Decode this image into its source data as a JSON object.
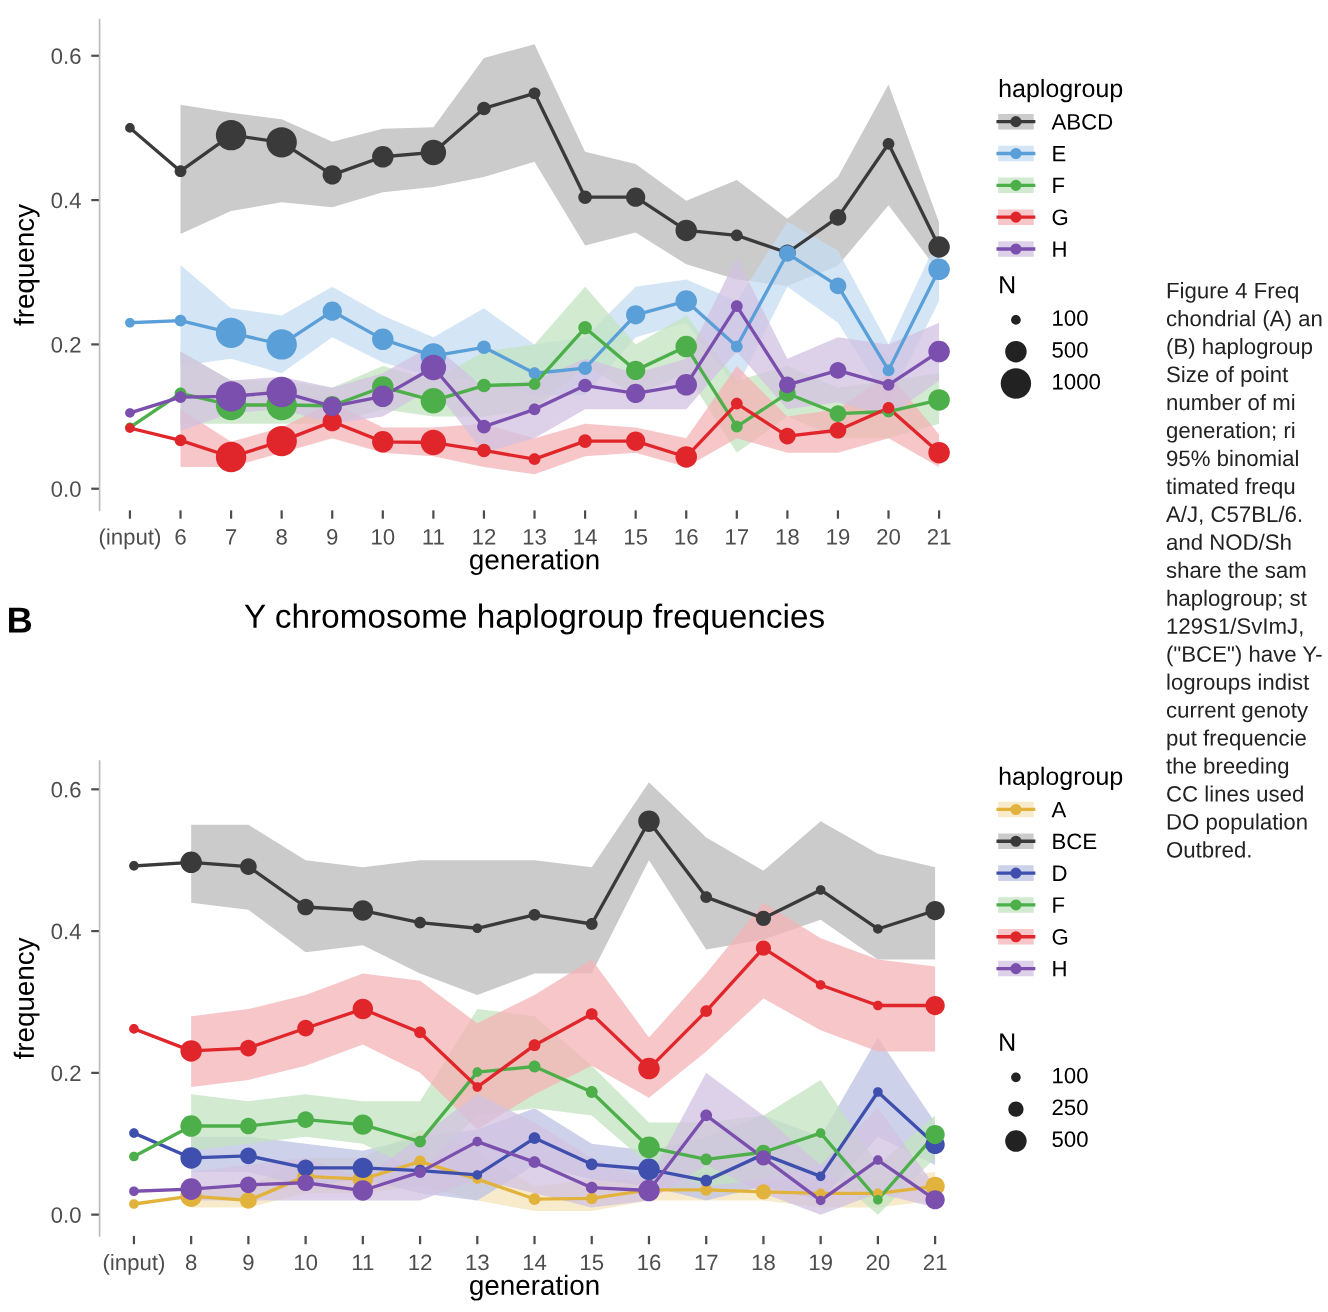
{
  "chart_data": [
    {
      "type": "bubble",
      "ylabel": "frequency",
      "xlabel": "generation",
      "legend": "right",
      "legend_title": "haplogroup",
      "marker": "circle",
      "line_style": "solid",
      "grid": false,
      "categories": [
        "(input)",
        "6",
        "7",
        "8",
        "9",
        "10",
        "11",
        "12",
        "13",
        "14",
        "15",
        "16",
        "17",
        "18",
        "19",
        "20",
        "21"
      ],
      "ylim": [
        -0.03,
        0.65
      ],
      "yticks": [
        {
          "value": 0,
          "label": "0.0"
        },
        0.2,
        0.4,
        0.6
      ],
      "size_legend": [
        100,
        500,
        1000
      ],
      "series": [
        {
          "type": "line",
          "marker": "none",
          "color": "#3a3a3a",
          "values": [
            0.5,
            0.44,
            0.49,
            0.48,
            0.435,
            0.46,
            0.466,
            0.527,
            0.548,
            0.404,
            0.404,
            0.358,
            0.351,
            0.327,
            0.376,
            0.478,
            0.335
          ]
        },
        {
          "type": "line",
          "marker": "none",
          "color": "#5a9fd8",
          "values": [
            0.23,
            0.233,
            0.216,
            0.2,
            0.246,
            0.207,
            0.184,
            0.196,
            0.16,
            0.167,
            0.241,
            0.26,
            0.197,
            0.326,
            0.281,
            0.164,
            0.304
          ]
        },
        {
          "type": "line",
          "marker": "none",
          "color": "#4daf4a",
          "values": [
            0.085,
            0.132,
            0.116,
            0.116,
            0.115,
            0.141,
            0.122,
            0.143,
            0.145,
            0.223,
            0.164,
            0.197,
            0.086,
            0.132,
            0.104,
            0.107,
            0.123
          ]
        },
        {
          "type": "line",
          "marker": "none",
          "color": "#e0262b",
          "values": [
            0.084,
            0.067,
            0.044,
            0.066,
            0.093,
            0.065,
            0.064,
            0.053,
            0.041,
            0.066,
            0.066,
            0.044,
            0.118,
            0.073,
            0.081,
            0.112,
            0.05
          ]
        },
        {
          "type": "line",
          "marker": "none",
          "color": "#7b4fad",
          "values": [
            0.105,
            0.127,
            0.128,
            0.134,
            0.114,
            0.128,
            0.168,
            0.086,
            0.11,
            0.143,
            0.132,
            0.144,
            0.253,
            0.144,
            0.164,
            0.144,
            0.19
          ]
        },
        {
          "name": "ABCD",
          "color": "#3a3a3a",
          "values": [
            0.5,
            0.44,
            0.49,
            0.48,
            0.435,
            0.46,
            0.466,
            0.527,
            0.548,
            0.404,
            0.404,
            0.358,
            0.351,
            0.327,
            0.376,
            0.478,
            0.335
          ],
          "lower": [
            null,
            0.353,
            0.385,
            0.397,
            0.39,
            0.411,
            0.418,
            0.432,
            0.453,
            0.337,
            0.355,
            0.311,
            0.29,
            0.281,
            0.309,
            0.393,
            0.3
          ],
          "upper": [
            null,
            0.532,
            0.521,
            0.512,
            0.481,
            0.499,
            0.501,
            0.597,
            0.616,
            0.467,
            0.45,
            0.399,
            0.428,
            0.374,
            0.432,
            0.56,
            0.369
          ],
          "sizes": [
            100,
            150,
            1000,
            1000,
            400,
            500,
            700,
            200,
            150,
            200,
            400,
            500,
            150,
            300,
            300,
            150,
            500
          ]
        },
        {
          "name": "E",
          "color": "#5a9fd8",
          "values": [
            0.23,
            0.233,
            0.216,
            0.2,
            0.246,
            0.207,
            0.184,
            0.196,
            0.16,
            0.167,
            0.241,
            0.26,
            0.197,
            0.326,
            0.281,
            0.164,
            0.304
          ],
          "lower": [
            null,
            0.17,
            0.18,
            0.16,
            0.21,
            0.175,
            0.155,
            0.15,
            0.13,
            0.13,
            0.21,
            0.23,
            0.14,
            0.28,
            0.23,
            0.12,
            0.26
          ],
          "upper": [
            null,
            0.31,
            0.25,
            0.24,
            0.28,
            0.24,
            0.21,
            0.25,
            0.2,
            0.21,
            0.28,
            0.29,
            0.26,
            0.37,
            0.33,
            0.2,
            0.35
          ],
          "sizes": [
            100,
            150,
            1000,
            1000,
            400,
            500,
            700,
            200,
            150,
            200,
            400,
            500,
            150,
            300,
            300,
            150,
            500
          ]
        },
        {
          "name": "F",
          "color": "#4daf4a",
          "values": [
            0.085,
            0.132,
            0.116,
            0.116,
            0.115,
            0.141,
            0.122,
            0.143,
            0.145,
            0.223,
            0.164,
            0.197,
            0.086,
            0.132,
            0.104,
            0.107,
            0.123
          ],
          "lower": [
            null,
            0.09,
            0.09,
            0.09,
            0.09,
            0.11,
            0.1,
            0.1,
            0.11,
            0.17,
            0.13,
            0.16,
            0.05,
            0.1,
            0.07,
            0.07,
            0.09
          ],
          "upper": [
            null,
            0.19,
            0.15,
            0.15,
            0.14,
            0.17,
            0.15,
            0.19,
            0.2,
            0.28,
            0.2,
            0.24,
            0.15,
            0.17,
            0.14,
            0.15,
            0.16
          ],
          "sizes": [
            100,
            150,
            1000,
            1000,
            400,
            500,
            700,
            200,
            150,
            200,
            400,
            500,
            150,
            300,
            300,
            150,
            500
          ]
        },
        {
          "name": "G",
          "color": "#e0262b",
          "values": [
            0.084,
            0.067,
            0.044,
            0.066,
            0.093,
            0.065,
            0.064,
            0.053,
            0.041,
            0.066,
            0.066,
            0.044,
            0.118,
            0.073,
            0.081,
            0.112,
            0.05
          ],
          "lower": [
            null,
            0.03,
            0.03,
            0.05,
            0.07,
            0.05,
            0.045,
            0.03,
            0.02,
            0.045,
            0.05,
            0.03,
            0.07,
            0.05,
            0.05,
            0.07,
            0.03
          ],
          "upper": [
            null,
            0.11,
            0.065,
            0.085,
            0.12,
            0.085,
            0.085,
            0.09,
            0.07,
            0.09,
            0.085,
            0.07,
            0.17,
            0.1,
            0.11,
            0.16,
            0.075
          ],
          "sizes": [
            100,
            150,
            1000,
            1000,
            400,
            500,
            700,
            200,
            150,
            200,
            400,
            500,
            150,
            300,
            300,
            150,
            500
          ]
        },
        {
          "name": "H",
          "color": "#7b4fad",
          "values": [
            0.105,
            0.127,
            0.128,
            0.134,
            0.114,
            0.128,
            0.168,
            0.086,
            0.11,
            0.143,
            0.132,
            0.144,
            0.253,
            0.144,
            0.164,
            0.144,
            0.19
          ],
          "lower": [
            null,
            0.08,
            0.105,
            0.11,
            0.09,
            0.1,
            0.14,
            0.05,
            0.07,
            0.11,
            0.11,
            0.11,
            0.19,
            0.11,
            0.12,
            0.1,
            0.15
          ],
          "upper": [
            null,
            0.19,
            0.15,
            0.155,
            0.14,
            0.16,
            0.2,
            0.14,
            0.15,
            0.18,
            0.16,
            0.18,
            0.32,
            0.18,
            0.21,
            0.2,
            0.23
          ],
          "sizes": [
            100,
            150,
            1000,
            1000,
            400,
            500,
            700,
            200,
            150,
            200,
            400,
            500,
            150,
            300,
            300,
            150,
            500
          ]
        }
      ],
      "annotations": [
        "N",
        "Figure 4 Freq\nchondrial (A) an\n(B) haplogroup\nSize of point\nnumber of mi\ngeneration; ri\n95% binomial\ntimated frequ\nA/J, C57BL/6.\nand NOD/Sh\nshare the sam\nhaplogroup; st\n129S1/SvImJ,\n(\"BCE\") have Y-\nlogroups indist\ncurrent genoty\nput frequencie\nthe breeding\nCC lines used\nDO population\nOutbred."
      ]
    },
    {
      "type": "bubble",
      "title": "Y chromosome haplogroup frequencies",
      "ylabel": "frequency",
      "xlabel": "generation",
      "legend": "right",
      "legend_title": "haplogroup",
      "marker": "circle",
      "line_style": "solid",
      "grid": false,
      "categories": [
        "(input)",
        "8",
        "9",
        "10",
        "11",
        "12",
        "13",
        "14",
        "15",
        "16",
        "17",
        "18",
        "19",
        "20",
        "21"
      ],
      "ylim": [
        -0.03,
        0.64
      ],
      "yticks": [
        {
          "value": 0,
          "label": "0.0"
        },
        0.2,
        0.4,
        0.6
      ],
      "size_legend": [
        100,
        250,
        500
      ],
      "series": [
        {
          "type": "line",
          "marker": "none",
          "color": "#e2b33c",
          "values": [
            0.015,
            0.026,
            0.02,
            0.054,
            0.05,
            0.075,
            0.05,
            0.022,
            0.023,
            0.035,
            0.035,
            0.032,
            0.03,
            0.03,
            0.04
          ]
        },
        {
          "type": "line",
          "marker": "none",
          "color": "#3a3a3a",
          "values": [
            0.492,
            0.497,
            0.491,
            0.434,
            0.429,
            0.412,
            0.404,
            0.423,
            0.41,
            0.555,
            0.448,
            0.418,
            0.458,
            0.403,
            0.429
          ]
        },
        {
          "type": "line",
          "marker": "none",
          "color": "#3f4fae",
          "values": [
            0.115,
            0.08,
            0.083,
            0.066,
            0.066,
            0.062,
            0.056,
            0.108,
            0.071,
            0.064,
            0.048,
            0.085,
            0.054,
            0.173,
            0.099
          ]
        },
        {
          "type": "line",
          "marker": "none",
          "color": "#4daf4a",
          "values": [
            0.082,
            0.125,
            0.125,
            0.134,
            0.127,
            0.103,
            0.201,
            0.209,
            0.173,
            0.095,
            0.078,
            0.088,
            0.115,
            0.021,
            0.113
          ]
        },
        {
          "type": "line",
          "marker": "none",
          "color": "#e0262b",
          "values": [
            0.262,
            0.231,
            0.235,
            0.263,
            0.29,
            0.257,
            0.18,
            0.239,
            0.283,
            0.206,
            0.287,
            0.376,
            0.324,
            0.295,
            0.295
          ]
        },
        {
          "type": "line",
          "marker": "none",
          "color": "#7b4fad",
          "values": [
            0.033,
            0.036,
            0.042,
            0.045,
            0.034,
            0.06,
            0.103,
            0.074,
            0.038,
            0.034,
            0.14,
            0.08,
            0.02,
            0.077,
            0.021
          ]
        },
        {
          "name": "A",
          "color": "#e2b33c",
          "values": [
            0.015,
            0.026,
            0.02,
            0.054,
            0.05,
            0.075,
            0.05,
            0.022,
            0.023,
            null,
            0.035,
            0.032,
            0.03,
            0.03,
            0.04
          ],
          "lower": [
            null,
            0.01,
            0.01,
            0.03,
            0.03,
            0.04,
            0.02,
            0.005,
            0.005,
            0.02,
            0.02,
            0.02,
            0.01,
            0.01,
            0.02
          ],
          "upper": [
            null,
            0.04,
            0.04,
            0.08,
            0.08,
            0.12,
            0.09,
            0.04,
            0.05,
            0.05,
            0.06,
            0.05,
            0.05,
            0.05,
            0.06
          ],
          "sizes": [
            100,
            500,
            300,
            300,
            450,
            150,
            100,
            150,
            150,
            null,
            150,
            250,
            100,
            100,
            400
          ]
        },
        {
          "name": "BCE",
          "color": "#3a3a3a",
          "values": [
            0.492,
            0.497,
            0.491,
            0.434,
            0.429,
            0.412,
            0.404,
            0.423,
            0.41,
            0.555,
            0.448,
            0.418,
            0.458,
            0.403,
            0.429
          ],
          "lower": [
            null,
            0.44,
            0.43,
            0.37,
            0.38,
            0.34,
            0.31,
            0.34,
            0.34,
            0.5,
            0.374,
            0.388,
            0.416,
            0.36,
            0.36
          ],
          "upper": [
            null,
            0.55,
            0.55,
            0.5,
            0.49,
            0.5,
            0.5,
            0.5,
            0.49,
            0.61,
            0.532,
            0.485,
            0.555,
            0.509,
            0.49
          ],
          "sizes": [
            100,
            500,
            300,
            300,
            450,
            150,
            100,
            150,
            150,
            500,
            150,
            250,
            100,
            100,
            400
          ]
        },
        {
          "name": "D",
          "color": "#3f4fae",
          "values": [
            0.115,
            0.08,
            0.083,
            0.066,
            0.066,
            0.062,
            0.056,
            0.108,
            0.071,
            0.064,
            0.048,
            null,
            0.054,
            0.173,
            0.099
          ],
          "lower": [
            null,
            0.06,
            0.06,
            0.04,
            0.05,
            0.03,
            0.02,
            0.07,
            0.05,
            0.04,
            0.02,
            0.04,
            0.02,
            0.11,
            0.07
          ],
          "upper": [
            null,
            0.11,
            0.11,
            0.1,
            0.09,
            0.11,
            0.12,
            0.15,
            0.1,
            0.09,
            0.11,
            0.14,
            0.11,
            0.25,
            0.13
          ],
          "sizes": [
            100,
            500,
            300,
            300,
            450,
            150,
            100,
            150,
            150,
            500,
            150,
            null,
            100,
            100,
            400
          ]
        },
        {
          "name": "F",
          "color": "#4daf4a",
          "values": [
            0.082,
            0.125,
            0.125,
            0.134,
            0.127,
            0.103,
            0.201,
            0.209,
            0.173,
            0.095,
            0.078,
            0.088,
            0.115,
            0.021,
            0.113
          ],
          "lower": [
            null,
            0.09,
            0.1,
            0.11,
            0.1,
            0.06,
            0.14,
            0.15,
            0.14,
            0.07,
            0.04,
            0.05,
            0.07,
            0.0,
            0.08
          ],
          "upper": [
            null,
            0.17,
            0.16,
            0.17,
            0.16,
            0.16,
            0.29,
            0.28,
            0.21,
            0.13,
            0.13,
            0.14,
            0.19,
            0.07,
            0.14
          ],
          "sizes": [
            100,
            500,
            300,
            300,
            450,
            150,
            100,
            150,
            150,
            500,
            150,
            250,
            100,
            100,
            400
          ]
        },
        {
          "name": "G",
          "color": "#e0262b",
          "values": [
            0.262,
            0.231,
            0.235,
            0.263,
            0.29,
            0.257,
            0.18,
            0.239,
            0.283,
            0.206,
            0.287,
            0.376,
            0.324,
            0.295,
            0.295
          ],
          "lower": [
            null,
            0.18,
            0.19,
            0.21,
            0.24,
            0.2,
            0.12,
            0.17,
            0.21,
            0.165,
            0.23,
            0.305,
            0.26,
            0.23,
            0.23
          ],
          "upper": [
            null,
            0.28,
            0.29,
            0.31,
            0.34,
            0.33,
            0.27,
            0.31,
            0.36,
            0.25,
            0.34,
            0.44,
            0.39,
            0.36,
            0.35
          ],
          "sizes": [
            100,
            500,
            300,
            300,
            450,
            150,
            100,
            150,
            150,
            500,
            150,
            250,
            100,
            100,
            400
          ]
        },
        {
          "name": "H",
          "color": "#7b4fad",
          "values": [
            0.033,
            0.036,
            0.042,
            0.045,
            0.034,
            0.06,
            0.103,
            0.074,
            0.038,
            0.034,
            0.14,
            0.08,
            0.02,
            0.077,
            0.021
          ],
          "lower": [
            null,
            0.02,
            0.02,
            0.02,
            0.02,
            0.02,
            0.05,
            0.03,
            0.01,
            0.02,
            0.07,
            0.03,
            0.0,
            0.03,
            0.01
          ],
          "upper": [
            null,
            0.06,
            0.07,
            0.08,
            0.05,
            0.11,
            0.17,
            0.13,
            0.08,
            0.05,
            0.2,
            0.14,
            0.07,
            0.15,
            0.04
          ],
          "sizes": [
            100,
            500,
            300,
            300,
            450,
            150,
            100,
            150,
            150,
            500,
            150,
            250,
            100,
            100,
            400
          ]
        }
      ],
      "annotations": [
        "N",
        "B"
      ]
    }
  ]
}
